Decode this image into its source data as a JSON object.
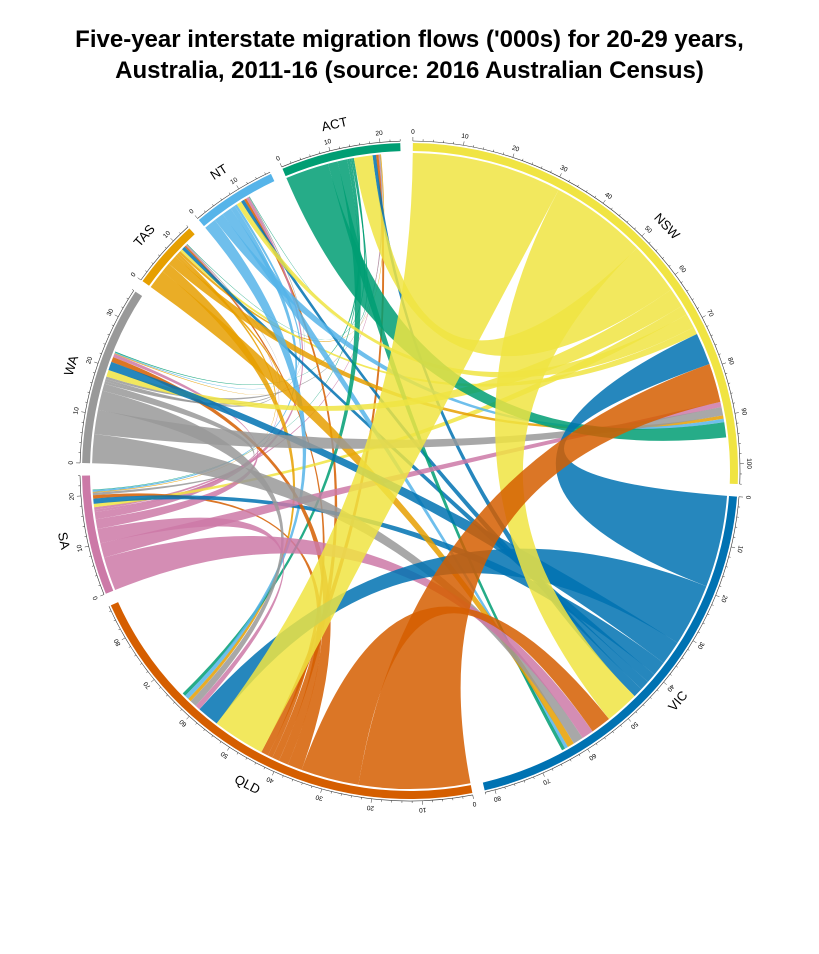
{
  "title": {
    "line1": "Five-year interstate migration flows ('000s) for 20-29 years,",
    "line2": "Australia, 2011-16 (source: 2016 Australian Census)"
  },
  "chart_data": {
    "type": "chord",
    "title": "Five-year interstate migration flows ('000s) for 20-29 years, Australia, 2011-16 (source: 2016 Australian Census)",
    "units": "'000s",
    "regions": [
      {
        "name": "NSW",
        "color": "#F0E442",
        "total": 104
      },
      {
        "name": "VIC",
        "color": "#0072B2",
        "total": 82
      },
      {
        "name": "QLD",
        "color": "#D55E00",
        "total": 87
      },
      {
        "name": "SA",
        "color": "#CC79A7",
        "total": 24
      },
      {
        "name": "WA",
        "color": "#999999",
        "total": 36
      },
      {
        "name": "TAS",
        "color": "#E69F00",
        "total": 14
      },
      {
        "name": "NT",
        "color": "#56B4E9",
        "total": 17
      },
      {
        "name": "ACT",
        "color": "#009E73",
        "total": 24
      }
    ],
    "flows": [
      {
        "from": "NSW",
        "to": "QLD",
        "value": 31
      },
      {
        "from": "NSW",
        "to": "VIC",
        "value": 20
      },
      {
        "from": "NSW",
        "to": "ACT",
        "value": 11
      },
      {
        "from": "NSW",
        "to": "WA",
        "value": 4
      },
      {
        "from": "NSW",
        "to": "SA",
        "value": 2
      },
      {
        "from": "NSW",
        "to": "NT",
        "value": 3
      },
      {
        "from": "NSW",
        "to": "TAS",
        "value": 1.5
      },
      {
        "from": "VIC",
        "to": "NSW",
        "value": 19
      },
      {
        "from": "VIC",
        "to": "QLD",
        "value": 13
      },
      {
        "from": "VIC",
        "to": "WA",
        "value": 5
      },
      {
        "from": "VIC",
        "to": "SA",
        "value": 3
      },
      {
        "from": "VIC",
        "to": "TAS",
        "value": 2
      },
      {
        "from": "VIC",
        "to": "NT",
        "value": 2
      },
      {
        "from": "VIC",
        "to": "ACT",
        "value": 2
      },
      {
        "from": "QLD",
        "to": "NSW",
        "value": 23
      },
      {
        "from": "QLD",
        "to": "VIC",
        "value": 12
      },
      {
        "from": "QLD",
        "to": "WA",
        "value": 3
      },
      {
        "from": "QLD",
        "to": "SA",
        "value": 2
      },
      {
        "from": "QLD",
        "to": "NT",
        "value": 1.5
      },
      {
        "from": "QLD",
        "to": "TAS",
        "value": 1
      },
      {
        "from": "QLD",
        "to": "ACT",
        "value": 1.5
      },
      {
        "from": "SA",
        "to": "VIC",
        "value": 7
      },
      {
        "from": "SA",
        "to": "NSW",
        "value": 3
      },
      {
        "from": "SA",
        "to": "QLD",
        "value": 3
      },
      {
        "from": "SA",
        "to": "WA",
        "value": 2
      },
      {
        "from": "SA",
        "to": "NT",
        "value": 1.5
      },
      {
        "from": "SA",
        "to": "TAS",
        "value": 0.5
      },
      {
        "from": "SA",
        "to": "ACT",
        "value": 0.5
      },
      {
        "from": "WA",
        "to": "VIC",
        "value": 6
      },
      {
        "from": "WA",
        "to": "NSW",
        "value": 5
      },
      {
        "from": "WA",
        "to": "QLD",
        "value": 4
      },
      {
        "from": "WA",
        "to": "SA",
        "value": 1.5
      },
      {
        "from": "WA",
        "to": "NT",
        "value": 0.5
      },
      {
        "from": "WA",
        "to": "TAS",
        "value": 0.5
      },
      {
        "from": "WA",
        "to": "ACT",
        "value": 0.5
      },
      {
        "from": "TAS",
        "to": "VIC",
        "value": 4
      },
      {
        "from": "TAS",
        "to": "QLD",
        "value": 2
      },
      {
        "from": "TAS",
        "to": "NSW",
        "value": 2
      },
      {
        "from": "TAS",
        "to": "WA",
        "value": 0.5
      },
      {
        "from": "TAS",
        "to": "SA",
        "value": 0.5
      },
      {
        "from": "TAS",
        "to": "ACT",
        "value": 0.5
      },
      {
        "from": "NT",
        "to": "QLD",
        "value": 2.5
      },
      {
        "from": "NT",
        "to": "NSW",
        "value": 2
      },
      {
        "from": "NT",
        "to": "VIC",
        "value": 2
      },
      {
        "from": "NT",
        "to": "SA",
        "value": 1
      },
      {
        "from": "NT",
        "to": "WA",
        "value": 0.5
      },
      {
        "from": "ACT",
        "to": "NSW",
        "value": 9
      },
      {
        "from": "ACT",
        "to": "VIC",
        "value": 2
      },
      {
        "from": "ACT",
        "to": "QLD",
        "value": 2
      },
      {
        "from": "ACT",
        "to": "WA",
        "value": 0.5
      },
      {
        "from": "ACT",
        "to": "SA",
        "value": 0.3
      },
      {
        "from": "ACT",
        "to": "NT",
        "value": 0.3
      },
      {
        "from": "ACT",
        "to": "TAS",
        "value": 0.3
      }
    ],
    "axis_tick_step": 10,
    "grid": false,
    "legend": "none"
  }
}
